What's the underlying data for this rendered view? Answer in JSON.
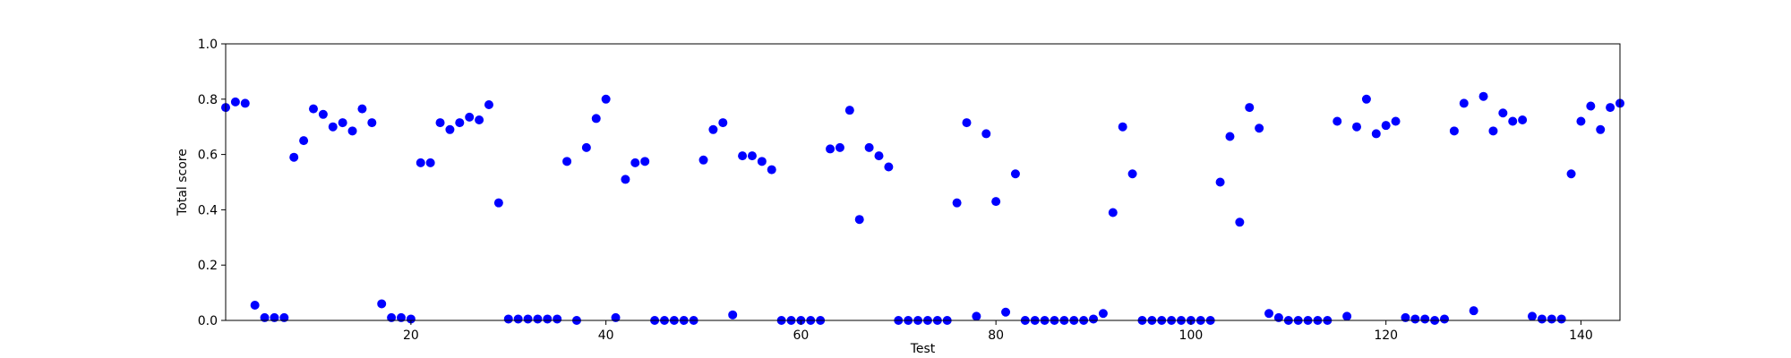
{
  "chart_data": {
    "type": "scatter",
    "xlabel": "Test",
    "ylabel": "Total score",
    "xlim": [
      1,
      144
    ],
    "ylim": [
      0,
      1.0
    ],
    "x_ticks": [
      20,
      40,
      60,
      80,
      100,
      120,
      140
    ],
    "y_ticks": [
      0.0,
      0.2,
      0.4,
      0.6,
      0.8,
      1.0
    ],
    "y_tick_labels": [
      "0.0",
      "0.2",
      "0.4",
      "0.6",
      "0.8",
      "1.0"
    ],
    "grid": false,
    "marker_color": "#0000ff",
    "x": [
      1,
      2,
      3,
      4,
      5,
      6,
      7,
      8,
      9,
      10,
      11,
      12,
      13,
      14,
      15,
      16,
      17,
      18,
      19,
      20,
      21,
      22,
      23,
      24,
      25,
      26,
      27,
      28,
      29,
      30,
      31,
      32,
      33,
      34,
      35,
      36,
      37,
      38,
      39,
      40,
      41,
      42,
      43,
      44,
      45,
      46,
      47,
      48,
      49,
      50,
      51,
      52,
      53,
      54,
      55,
      56,
      57,
      58,
      59,
      60,
      61,
      62,
      63,
      64,
      65,
      66,
      67,
      68,
      69,
      70,
      71,
      72,
      73,
      74,
      75,
      76,
      77,
      78,
      79,
      80,
      81,
      82,
      83,
      84,
      85,
      86,
      87,
      88,
      89,
      90,
      91,
      92,
      93,
      94,
      95,
      96,
      97,
      98,
      99,
      100,
      101,
      102,
      103,
      104,
      105,
      106,
      107,
      108,
      109,
      110,
      111,
      112,
      113,
      114,
      115,
      116,
      117,
      118,
      119,
      120,
      121,
      122,
      123,
      124,
      125,
      126,
      127,
      128,
      129,
      130,
      131,
      132,
      133,
      134,
      135,
      136,
      137,
      138,
      139,
      140,
      141,
      142,
      143,
      144
    ],
    "y": [
      0.77,
      0.79,
      0.785,
      0.055,
      0.01,
      0.01,
      0.01,
      0.59,
      0.65,
      0.765,
      0.745,
      0.7,
      0.715,
      0.685,
      0.765,
      0.715,
      0.06,
      0.01,
      0.01,
      0.005,
      0.57,
      0.57,
      0.715,
      0.69,
      0.715,
      0.735,
      0.725,
      0.78,
      0.425,
      0.005,
      0.005,
      0.005,
      0.005,
      0.005,
      0.005,
      0.575,
      0.0,
      0.625,
      0.73,
      0.8,
      0.01,
      0.51,
      0.57,
      0.575,
      0.0,
      0.0,
      0.0,
      0.0,
      0.0,
      0.58,
      0.69,
      0.715,
      0.02,
      0.595,
      0.595,
      0.575,
      0.545,
      0.0,
      0.0,
      0.0,
      0.0,
      0.0,
      0.62,
      0.625,
      0.76,
      0.365,
      0.625,
      0.595,
      0.555,
      0.0,
      0.0,
      0.0,
      0.0,
      0.0,
      0.0,
      0.425,
      0.715,
      0.015,
      0.675,
      0.43,
      0.03,
      0.53,
      0.0,
      0.0,
      0.0,
      0.0,
      0.0,
      0.0,
      0.0,
      0.005,
      0.025,
      0.39,
      0.7,
      0.53,
      0.0,
      0.0,
      0.0,
      0.0,
      0.0,
      0.0,
      0.0,
      0.0,
      0.5,
      0.665,
      0.355,
      0.77,
      0.695,
      0.025,
      0.01,
      0.0,
      0.0,
      0.0,
      0.0,
      0.0,
      0.72,
      0.015,
      0.7,
      0.8,
      0.675,
      0.705,
      0.72,
      0.01,
      0.005,
      0.005,
      0.0,
      0.005,
      0.685,
      0.785,
      0.035,
      0.81,
      0.685,
      0.75,
      0.72,
      0.725,
      0.015,
      0.005,
      0.005,
      0.005,
      0.53,
      0.72,
      0.775,
      0.69,
      0.77,
      0.785
    ]
  }
}
